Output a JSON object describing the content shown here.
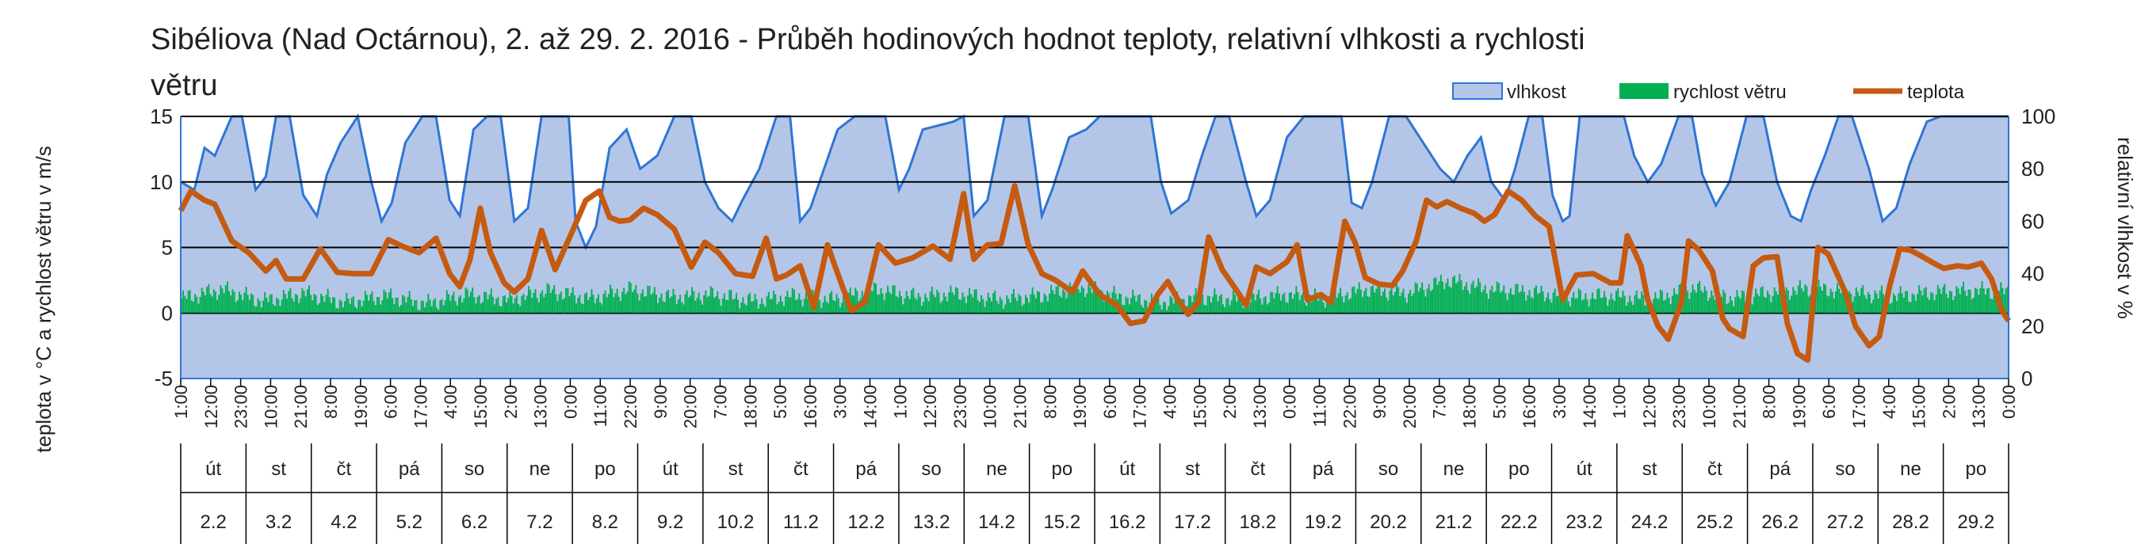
{
  "chart_data": {
    "type": "area",
    "title_line1": "Sibéliova (Nad Octárnou), 2. až 29. 2. 2016 - Průběh hodinových hodnot teploty, relativní vlhkosti a rychlosti",
    "title_line2": "větru",
    "ylabel_left": "teplota v °C a rychlost větru v m/s",
    "ylabel_right": "relativní vlhkost v %",
    "ylim_left": [
      -5,
      15
    ],
    "ylim_right": [
      0,
      100
    ],
    "yticks_left": [
      "15",
      "10",
      "5",
      "0",
      "-5"
    ],
    "yticks_right": [
      "100",
      "80",
      "60",
      "40",
      "20",
      "0"
    ],
    "legend": [
      {
        "name": "vlhkost",
        "color": "#b4c6e7",
        "border": "#2e75d6"
      },
      {
        "name": "rychlost větru",
        "color": "#00b050"
      },
      {
        "name": "teplota",
        "color": "#c55a11"
      }
    ],
    "x_tick_labels": [
      "1:00",
      "12:00",
      "23:00",
      "10:00",
      "21:00",
      "8:00",
      "19:00",
      "6:00",
      "17:00",
      "4:00",
      "15:00",
      "2:00",
      "13:00",
      "0:00",
      "11:00",
      "22:00",
      "9:00",
      "20:00",
      "7:00",
      "18:00",
      "5:00",
      "16:00",
      "3:00",
      "14:00",
      "1:00",
      "12:00",
      "23:00",
      "10:00",
      "21:00",
      "8:00",
      "19:00",
      "6:00",
      "17:00",
      "4:00",
      "15:00",
      "2:00",
      "13:00",
      "0:00",
      "11:00",
      "22:00",
      "9:00",
      "20:00",
      "7:00",
      "18:00",
      "5:00",
      "16:00",
      "3:00",
      "14:00",
      "1:00",
      "12:00",
      "23:00",
      "10:00",
      "21:00",
      "8:00",
      "19:00",
      "6:00",
      "17:00",
      "4:00",
      "15:00",
      "2:00",
      "13:00",
      "0:00"
    ],
    "weekdays": [
      "út",
      "st",
      "čt",
      "pá",
      "so",
      "ne",
      "po",
      "út",
      "st",
      "čt",
      "pá",
      "so",
      "ne",
      "po",
      "út",
      "st",
      "čt",
      "pá",
      "so",
      "ne",
      "po",
      "út",
      "st",
      "čt",
      "pá",
      "so",
      "ne",
      "po"
    ],
    "dates": [
      "2.2",
      "3.2",
      "4.2",
      "5.2",
      "6.2",
      "7.2",
      "8.2",
      "9.2",
      "10.2",
      "11.2",
      "12.2",
      "13.2",
      "14.2",
      "15.2",
      "16.2",
      "17.2",
      "18.2",
      "19.2",
      "20.2",
      "21.2",
      "22.2",
      "23.2",
      "24.2",
      "25.2",
      "26.2",
      "27.2",
      "28.2",
      "29.2"
    ],
    "series_temperature": {
      "name": "teplota",
      "unit": "°C",
      "hourly_keypoints": [
        [
          0,
          7.8
        ],
        [
          6,
          9.3
        ],
        [
          14,
          8.6
        ],
        [
          20,
          8.3
        ],
        [
          30,
          5.5
        ],
        [
          40,
          4.6
        ],
        [
          50,
          3.2
        ],
        [
          56,
          4.0
        ],
        [
          62,
          2.6
        ],
        [
          72,
          2.6
        ],
        [
          82,
          4.9
        ],
        [
          92,
          3.1
        ],
        [
          102,
          3.0
        ],
        [
          112,
          3.0
        ],
        [
          122,
          5.6
        ],
        [
          130,
          5.1
        ],
        [
          140,
          4.6
        ],
        [
          150,
          5.7
        ],
        [
          158,
          3.0
        ],
        [
          164,
          2.0
        ],
        [
          170,
          4.1
        ],
        [
          176,
          8.0
        ],
        [
          182,
          4.6
        ],
        [
          190,
          2.3
        ],
        [
          196,
          1.6
        ],
        [
          204,
          2.6
        ],
        [
          212,
          6.3
        ],
        [
          220,
          3.3
        ],
        [
          230,
          6.2
        ],
        [
          238,
          8.6
        ],
        [
          246,
          9.3
        ],
        [
          252,
          7.3
        ],
        [
          258,
          7.0
        ],
        [
          264,
          7.1
        ],
        [
          272,
          8.0
        ],
        [
          280,
          7.5
        ],
        [
          290,
          6.4
        ],
        [
          300,
          3.5
        ],
        [
          308,
          5.4
        ],
        [
          316,
          4.6
        ],
        [
          326,
          3.0
        ],
        [
          336,
          2.8
        ],
        [
          344,
          5.7
        ],
        [
          350,
          2.6
        ],
        [
          356,
          2.9
        ],
        [
          364,
          3.6
        ],
        [
          372,
          0.4
        ],
        [
          380,
          5.2
        ],
        [
          388,
          2.3
        ],
        [
          394,
          0.2
        ],
        [
          402,
          0.8
        ],
        [
          410,
          5.2
        ],
        [
          420,
          3.8
        ],
        [
          430,
          4.2
        ],
        [
          442,
          5.1
        ],
        [
          452,
          4.1
        ],
        [
          460,
          9.1
        ],
        [
          466,
          4.1
        ],
        [
          474,
          5.2
        ],
        [
          482,
          5.3
        ],
        [
          490,
          9.7
        ],
        [
          498,
          5.2
        ],
        [
          506,
          3.0
        ],
        [
          514,
          2.5
        ],
        [
          524,
          1.6
        ],
        [
          530,
          3.2
        ],
        [
          540,
          1.4
        ],
        [
          550,
          0.6
        ],
        [
          558,
          -0.8
        ],
        [
          566,
          -0.6
        ],
        [
          574,
          1.4
        ],
        [
          580,
          2.4
        ],
        [
          586,
          1.0
        ],
        [
          592,
          -0.1
        ],
        [
          598,
          0.8
        ],
        [
          604,
          5.8
        ],
        [
          612,
          3.3
        ],
        [
          620,
          1.8
        ],
        [
          626,
          0.6
        ],
        [
          632,
          3.5
        ],
        [
          640,
          3.0
        ],
        [
          650,
          3.9
        ],
        [
          656,
          5.2
        ],
        [
          662,
          1.0
        ],
        [
          670,
          1.4
        ],
        [
          676,
          0.8
        ],
        [
          684,
          7.0
        ],
        [
          690,
          5.4
        ],
        [
          696,
          2.7
        ],
        [
          704,
          2.2
        ],
        [
          712,
          2.1
        ],
        [
          718,
          3.2
        ],
        [
          726,
          5.5
        ],
        [
          732,
          8.6
        ],
        [
          738,
          8.1
        ],
        [
          744,
          8.5
        ],
        [
          752,
          8.0
        ],
        [
          760,
          7.6
        ],
        [
          766,
          7.0
        ],
        [
          772,
          7.5
        ],
        [
          780,
          9.3
        ],
        [
          788,
          8.6
        ],
        [
          796,
          7.4
        ],
        [
          804,
          6.6
        ],
        [
          812,
          1.0
        ],
        [
          820,
          2.9
        ],
        [
          830,
          3.0
        ],
        [
          840,
          2.3
        ],
        [
          846,
          2.3
        ],
        [
          850,
          5.9
        ],
        [
          858,
          3.6
        ],
        [
          862,
          1.0
        ],
        [
          868,
          -1.0
        ],
        [
          874,
          -2.0
        ],
        [
          882,
          0.9
        ],
        [
          886,
          5.5
        ],
        [
          892,
          4.8
        ],
        [
          900,
          3.2
        ],
        [
          906,
          -0.4
        ],
        [
          910,
          -1.2
        ],
        [
          918,
          -1.8
        ],
        [
          924,
          3.6
        ],
        [
          930,
          4.2
        ],
        [
          938,
          4.3
        ],
        [
          944,
          -0.8
        ],
        [
          950,
          -3.1
        ],
        [
          956,
          -3.6
        ],
        [
          962,
          5.0
        ],
        [
          968,
          4.5
        ],
        [
          978,
          1.6
        ],
        [
          984,
          -1.0
        ],
        [
          992,
          -2.5
        ],
        [
          998,
          -1.8
        ],
        [
          1004,
          2.0
        ],
        [
          1010,
          4.9
        ],
        [
          1016,
          4.8
        ],
        [
          1022,
          4.4
        ],
        [
          1030,
          3.8
        ],
        [
          1036,
          3.4
        ],
        [
          1044,
          3.6
        ],
        [
          1050,
          3.5
        ],
        [
          1058,
          3.8
        ],
        [
          1064,
          2.6
        ],
        [
          1070,
          0.2
        ],
        [
          1074,
          -0.6
        ]
      ]
    },
    "series_humidity": {
      "name": "vlhkost",
      "unit": "%",
      "hourly_keypoints": [
        [
          0,
          75
        ],
        [
          8,
          72
        ],
        [
          14,
          88
        ],
        [
          20,
          85
        ],
        [
          30,
          100
        ],
        [
          36,
          100
        ],
        [
          44,
          72
        ],
        [
          50,
          77
        ],
        [
          56,
          100
        ],
        [
          64,
          100
        ],
        [
          72,
          70
        ],
        [
          80,
          62
        ],
        [
          86,
          78
        ],
        [
          94,
          90
        ],
        [
          104,
          100
        ],
        [
          112,
          75
        ],
        [
          118,
          60
        ],
        [
          124,
          67
        ],
        [
          132,
          90
        ],
        [
          142,
          100
        ],
        [
          150,
          100
        ],
        [
          158,
          68
        ],
        [
          164,
          62
        ],
        [
          172,
          95
        ],
        [
          180,
          100
        ],
        [
          188,
          100
        ],
        [
          196,
          60
        ],
        [
          204,
          65
        ],
        [
          212,
          100
        ],
        [
          220,
          100
        ],
        [
          228,
          100
        ],
        [
          232,
          60
        ],
        [
          238,
          50
        ],
        [
          244,
          58
        ],
        [
          252,
          88
        ],
        [
          262,
          95
        ],
        [
          270,
          80
        ],
        [
          280,
          85
        ],
        [
          290,
          100
        ],
        [
          300,
          100
        ],
        [
          308,
          75
        ],
        [
          316,
          65
        ],
        [
          324,
          60
        ],
        [
          330,
          68
        ],
        [
          340,
          80
        ],
        [
          350,
          100
        ],
        [
          358,
          100
        ],
        [
          364,
          60
        ],
        [
          370,
          65
        ],
        [
          378,
          80
        ],
        [
          386,
          95
        ],
        [
          396,
          100
        ],
        [
          404,
          100
        ],
        [
          414,
          100
        ],
        [
          422,
          72
        ],
        [
          428,
          80
        ],
        [
          436,
          95
        ],
        [
          448,
          97
        ],
        [
          454,
          98
        ],
        [
          460,
          100
        ],
        [
          466,
          62
        ],
        [
          474,
          68
        ],
        [
          484,
          100
        ],
        [
          498,
          100
        ],
        [
          506,
          62
        ],
        [
          512,
          72
        ],
        [
          522,
          92
        ],
        [
          532,
          95
        ],
        [
          540,
          100
        ],
        [
          550,
          100
        ],
        [
          560,
          100
        ],
        [
          570,
          100
        ],
        [
          576,
          75
        ],
        [
          582,
          63
        ],
        [
          592,
          68
        ],
        [
          600,
          85
        ],
        [
          608,
          100
        ],
        [
          616,
          100
        ],
        [
          626,
          75
        ],
        [
          632,
          62
        ],
        [
          640,
          68
        ],
        [
          650,
          92
        ],
        [
          660,
          100
        ],
        [
          668,
          100
        ],
        [
          676,
          100
        ],
        [
          682,
          100
        ],
        [
          688,
          67
        ],
        [
          694,
          65
        ],
        [
          700,
          75
        ],
        [
          710,
          100
        ],
        [
          720,
          100
        ],
        [
          732,
          88
        ],
        [
          740,
          80
        ],
        [
          748,
          75
        ],
        [
          756,
          85
        ],
        [
          764,
          92
        ],
        [
          770,
          75
        ],
        [
          778,
          68
        ],
        [
          784,
          80
        ],
        [
          792,
          100
        ],
        [
          800,
          100
        ],
        [
          806,
          70
        ],
        [
          812,
          60
        ],
        [
          816,
          62
        ],
        [
          822,
          100
        ],
        [
          832,
          100
        ],
        [
          842,
          100
        ],
        [
          848,
          100
        ],
        [
          854,
          85
        ],
        [
          862,
          75
        ],
        [
          870,
          82
        ],
        [
          880,
          100
        ],
        [
          888,
          100
        ],
        [
          894,
          78
        ],
        [
          902,
          66
        ],
        [
          910,
          75
        ],
        [
          920,
          100
        ],
        [
          930,
          100
        ],
        [
          938,
          75
        ],
        [
          946,
          62
        ],
        [
          952,
          60
        ],
        [
          958,
          72
        ],
        [
          966,
          85
        ],
        [
          974,
          100
        ],
        [
          982,
          100
        ],
        [
          992,
          80
        ],
        [
          1000,
          60
        ],
        [
          1008,
          65
        ],
        [
          1016,
          82
        ],
        [
          1026,
          98
        ],
        [
          1034,
          100
        ],
        [
          1044,
          100
        ],
        [
          1056,
          100
        ],
        [
          1064,
          100
        ],
        [
          1074,
          100
        ]
      ]
    },
    "series_wind": {
      "name": "rychlost větru",
      "unit": "m/s",
      "hourly_keypoints": [
        [
          0,
          1.1
        ],
        [
          24,
          1.8
        ],
        [
          48,
          0.9
        ],
        [
          72,
          1.5
        ],
        [
          96,
          0.8
        ],
        [
          120,
          1.3
        ],
        [
          144,
          0.7
        ],
        [
          168,
          1.4
        ],
        [
          192,
          1.0
        ],
        [
          216,
          1.7
        ],
        [
          240,
          1.1
        ],
        [
          264,
          1.8
        ],
        [
          288,
          1.2
        ],
        [
          312,
          1.4
        ],
        [
          336,
          0.9
        ],
        [
          360,
          1.3
        ],
        [
          384,
          1.0
        ],
        [
          408,
          1.8
        ],
        [
          432,
          1.2
        ],
        [
          456,
          1.5
        ],
        [
          480,
          1.0
        ],
        [
          504,
          1.3
        ],
        [
          528,
          2.0
        ],
        [
          552,
          1.2
        ],
        [
          576,
          0.8
        ],
        [
          600,
          1.2
        ],
        [
          624,
          1.0
        ],
        [
          648,
          1.4
        ],
        [
          672,
          1.1
        ],
        [
          696,
          1.8
        ],
        [
          720,
          1.5
        ],
        [
          744,
          2.5
        ],
        [
          768,
          1.8
        ],
        [
          792,
          1.6
        ],
        [
          816,
          1.2
        ],
        [
          840,
          1.3
        ],
        [
          864,
          1.0
        ],
        [
          888,
          1.9
        ],
        [
          912,
          1.1
        ],
        [
          936,
          1.6
        ],
        [
          960,
          1.9
        ],
        [
          984,
          1.5
        ],
        [
          1008,
          1.3
        ],
        [
          1032,
          1.6
        ],
        [
          1056,
          1.7
        ],
        [
          1074,
          1.6
        ]
      ]
    }
  }
}
